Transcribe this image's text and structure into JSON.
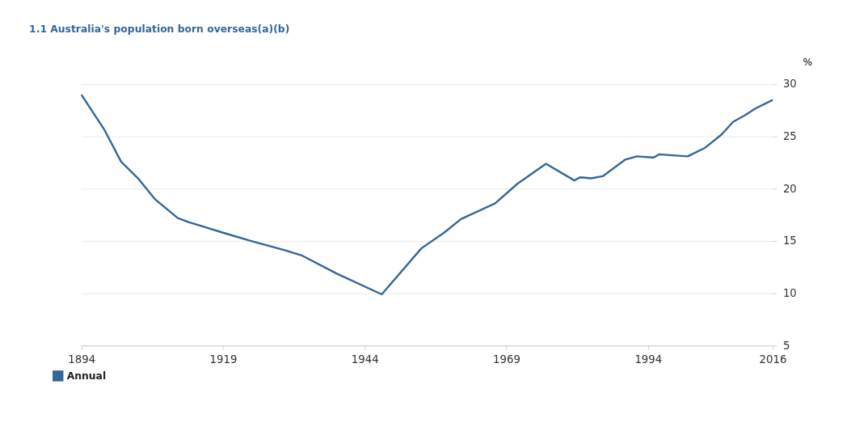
{
  "chart_data": {
    "type": "line",
    "title": "1.1 Australia's population born overseas(a)(b)",
    "ylabel": "%",
    "x": [
      1894,
      1898,
      1901,
      1904,
      1907,
      1911,
      1913,
      1919,
      1924,
      1930,
      1933,
      1939,
      1947,
      1954,
      1958,
      1961,
      1967,
      1971,
      1976,
      1981,
      1982,
      1984,
      1986,
      1990,
      1992,
      1995,
      1996,
      2001,
      2004,
      2007,
      2009,
      2011,
      2013,
      2016
    ],
    "series": [
      {
        "name": "Annual",
        "color": "#336699",
        "values": [
          29.0,
          25.7,
          22.6,
          21.0,
          19.0,
          17.2,
          16.8,
          15.8,
          15.0,
          14.1,
          13.6,
          11.9,
          9.9,
          14.3,
          15.8,
          17.1,
          18.6,
          20.5,
          22.4,
          20.8,
          21.1,
          21.0,
          21.2,
          22.8,
          23.1,
          23.0,
          23.3,
          23.1,
          23.9,
          25.2,
          26.4,
          27.0,
          27.7,
          28.5
        ]
      }
    ],
    "xlim": [
      1894,
      2016
    ],
    "xticks": [
      1894,
      1919,
      1944,
      1969,
      1994,
      2016
    ],
    "ylim": [
      5,
      30
    ],
    "yticks": [
      5,
      10,
      15,
      20,
      25,
      30
    ],
    "grid": "y",
    "legend": "bottom left",
    "marker": "none",
    "line_style": "solid"
  }
}
